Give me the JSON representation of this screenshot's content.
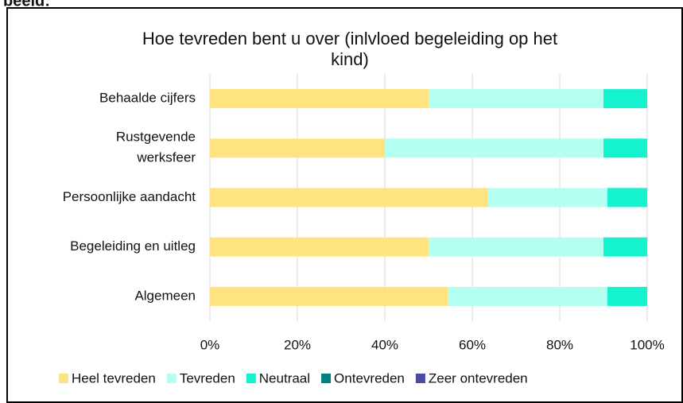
{
  "fragment": "beeld:",
  "chart_data": {
    "type": "stacked_barh",
    "title": "Hoe tevreden bent u over (inlvloed begeleiding op het\nkind)",
    "categories": [
      "Behaalde cijfers",
      "Rustgevende\nwerksfeer",
      "Persoonlijke aandacht",
      "Begeleiding en uitleg",
      "Algemeen"
    ],
    "series": [
      {
        "name": "Heel tevreden",
        "color": "#ffe381",
        "values": [
          50,
          40,
          63.6,
          50,
          54.5
        ]
      },
      {
        "name": "Tevreden",
        "color": "#b3fff0",
        "values": [
          40,
          50,
          27.3,
          40,
          36.4
        ]
      },
      {
        "name": "Neutraal",
        "color": "#14f2cf",
        "values": [
          10,
          10,
          9.1,
          10,
          9.1
        ]
      },
      {
        "name": "Ontevreden",
        "color": "#007f7f",
        "values": [
          0,
          0,
          0,
          0,
          0
        ]
      },
      {
        "name": "Zeer ontevreden",
        "color": "#4b4ba3",
        "values": [
          0,
          0,
          0,
          0,
          0
        ]
      }
    ],
    "xlim": [
      0,
      100
    ],
    "xticks": [
      {
        "value": 0,
        "label": "0%"
      },
      {
        "value": 20,
        "label": "20%"
      },
      {
        "value": 40,
        "label": "40%"
      },
      {
        "value": 60,
        "label": "60%"
      },
      {
        "value": 80,
        "label": "80%"
      },
      {
        "value": 100,
        "label": "100%"
      }
    ],
    "grid": true,
    "legend": "bottom"
  }
}
